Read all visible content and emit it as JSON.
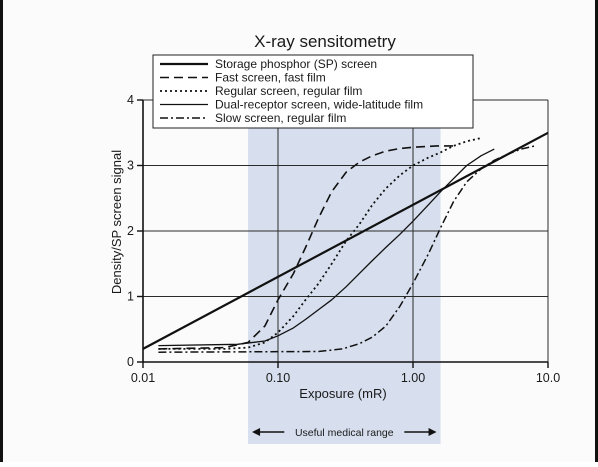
{
  "chart_data": {
    "type": "line",
    "title": "X-ray sensitometry",
    "xlabel": "Exposure (mR)",
    "ylabel": "Density/SP screen signal",
    "xscale": "log",
    "xlim": [
      0.01,
      10
    ],
    "ylim": [
      0,
      4
    ],
    "x_ticks": [
      0.01,
      0.1,
      1,
      10
    ],
    "x_tick_labels": [
      "0.01",
      "0.10",
      "1.00",
      "10.0"
    ],
    "y_ticks": [
      0,
      1,
      2,
      3,
      4
    ],
    "y_tick_labels": [
      "0",
      "1",
      "2",
      "3",
      "4"
    ],
    "grid": true,
    "legend_position": "top",
    "highlight": {
      "label": "Useful medical range",
      "x_range": [
        0.06,
        1.6
      ],
      "color": "#d3dcec"
    },
    "series": [
      {
        "name": "Storage phosphor (SP) screen",
        "style": "solid",
        "x": [
          0.01,
          10
        ],
        "y": [
          0.2,
          3.5
        ]
      },
      {
        "name": "Fast screen, fast film",
        "style": "dashed",
        "x": [
          0.013,
          0.04,
          0.06,
          0.08,
          0.1,
          0.13,
          0.16,
          0.2,
          0.25,
          0.32,
          0.4,
          0.5,
          0.63,
          0.8,
          1.0,
          1.5,
          2.0
        ],
        "y": [
          0.2,
          0.22,
          0.3,
          0.55,
          0.95,
          1.35,
          1.75,
          2.2,
          2.6,
          2.9,
          3.05,
          3.15,
          3.22,
          3.26,
          3.28,
          3.3,
          3.3
        ]
      },
      {
        "name": "Regular screen, regular film",
        "style": "dotted",
        "x": [
          0.013,
          0.04,
          0.06,
          0.08,
          0.1,
          0.13,
          0.16,
          0.2,
          0.25,
          0.32,
          0.4,
          0.5,
          0.63,
          0.8,
          1.0,
          1.3,
          1.6,
          2.0,
          2.5,
          3.2
        ],
        "y": [
          0.2,
          0.2,
          0.22,
          0.3,
          0.45,
          0.7,
          0.95,
          1.2,
          1.5,
          1.85,
          2.1,
          2.4,
          2.65,
          2.85,
          3.0,
          3.12,
          3.2,
          3.3,
          3.37,
          3.42
        ]
      },
      {
        "name": "Dual-receptor screen, wide-latitude film",
        "style": "solid-thin",
        "x": [
          0.013,
          0.05,
          0.08,
          0.1,
          0.13,
          0.16,
          0.2,
          0.25,
          0.32,
          0.4,
          0.5,
          0.63,
          0.8,
          1.0,
          1.3,
          1.6,
          2.0,
          2.5,
          3.2,
          4.0
        ],
        "y": [
          0.25,
          0.27,
          0.32,
          0.4,
          0.52,
          0.65,
          0.8,
          0.95,
          1.15,
          1.35,
          1.55,
          1.75,
          1.95,
          2.15,
          2.4,
          2.6,
          2.8,
          3.0,
          3.15,
          3.25
        ]
      },
      {
        "name": "Slow screen, regular film",
        "style": "dash-dot",
        "x": [
          0.013,
          0.2,
          0.3,
          0.4,
          0.5,
          0.63,
          0.8,
          1.0,
          1.3,
          1.6,
          2.0,
          2.5,
          3.2,
          4.0,
          5.0,
          6.3,
          8.0
        ],
        "y": [
          0.15,
          0.16,
          0.2,
          0.28,
          0.38,
          0.55,
          0.85,
          1.2,
          1.65,
          2.05,
          2.45,
          2.75,
          2.95,
          3.08,
          3.17,
          3.25,
          3.3
        ]
      }
    ]
  }
}
